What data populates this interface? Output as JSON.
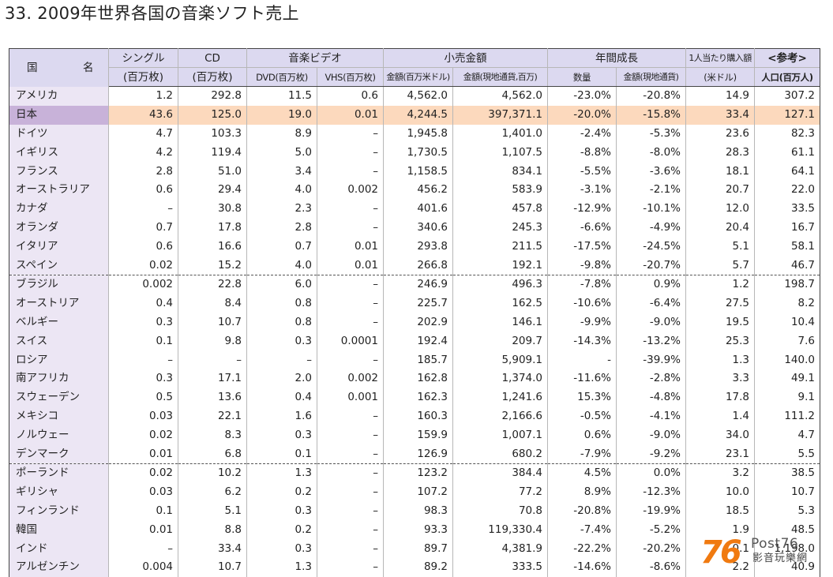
{
  "title": "33. 2009年世界各国の音楽ソフト売上",
  "header": {
    "country": "国　名",
    "single": "シングル",
    "single_unit": "(百万枚)",
    "cd": "CD",
    "cd_unit": "(百万枚)",
    "music_video": "音楽ビデオ",
    "dvd": "DVD(百万枚)",
    "vhs": "VHS(百万枚)",
    "retail": "小売金額",
    "retail_usd": "金額(百万米ドル)",
    "retail_local": "金額(現地通貨,百万)",
    "growth": "年間成長",
    "growth_qty": "数量",
    "growth_amount": "金額(現地通貨)",
    "per_capita": "1人当たり購入額",
    "per_capita_unit": "(米ドル)",
    "ref": "<参考>",
    "population": "人口(百万人)"
  },
  "rows": [
    {
      "country": "アメリカ",
      "single": "1.2",
      "cd": "292.8",
      "dvd": "11.5",
      "vhs": "0.6",
      "usd": "4,562.0",
      "local": "4,562.0",
      "qty": "-23.0%",
      "amt": "-20.8%",
      "per": "14.9",
      "pop": "307.2"
    },
    {
      "country": "日本",
      "single": "43.6",
      "cd": "125.0",
      "dvd": "19.0",
      "vhs": "0.01",
      "usd": "4,244.5",
      "local": "397,371.1",
      "qty": "-20.0%",
      "amt": "-15.8%",
      "per": "33.4",
      "pop": "127.1"
    },
    {
      "country": "ドイツ",
      "single": "4.7",
      "cd": "103.3",
      "dvd": "8.9",
      "vhs": "–",
      "usd": "1,945.8",
      "local": "1,401.0",
      "qty": "-2.4%",
      "amt": "-5.3%",
      "per": "23.6",
      "pop": "82.3"
    },
    {
      "country": "イギリス",
      "single": "4.2",
      "cd": "119.4",
      "dvd": "5.0",
      "vhs": "–",
      "usd": "1,730.5",
      "local": "1,107.5",
      "qty": "-8.8%",
      "amt": "-8.0%",
      "per": "28.3",
      "pop": "61.1"
    },
    {
      "country": "フランス",
      "single": "2.8",
      "cd": "51.0",
      "dvd": "3.4",
      "vhs": "–",
      "usd": "1,158.5",
      "local": "834.1",
      "qty": "-5.5%",
      "amt": "-3.6%",
      "per": "18.1",
      "pop": "64.1"
    },
    {
      "country": "オーストラリア",
      "single": "0.6",
      "cd": "29.4",
      "dvd": "4.0",
      "vhs": "0.002",
      "usd": "456.2",
      "local": "583.9",
      "qty": "-3.1%",
      "amt": "-2.1%",
      "per": "20.7",
      "pop": "22.0"
    },
    {
      "country": "カナダ",
      "single": "–",
      "cd": "30.8",
      "dvd": "2.3",
      "vhs": "–",
      "usd": "401.6",
      "local": "457.8",
      "qty": "-12.9%",
      "amt": "-10.1%",
      "per": "12.0",
      "pop": "33.5"
    },
    {
      "country": "オランダ",
      "single": "0.7",
      "cd": "17.8",
      "dvd": "2.8",
      "vhs": "–",
      "usd": "340.6",
      "local": "245.3",
      "qty": "-6.6%",
      "amt": "-4.9%",
      "per": "20.4",
      "pop": "16.7"
    },
    {
      "country": "イタリア",
      "single": "0.6",
      "cd": "16.6",
      "dvd": "0.7",
      "vhs": "0.01",
      "usd": "293.8",
      "local": "211.5",
      "qty": "-17.5%",
      "amt": "-24.5%",
      "per": "5.1",
      "pop": "58.1"
    },
    {
      "country": "スペイン",
      "single": "0.02",
      "cd": "15.2",
      "dvd": "4.0",
      "vhs": "0.01",
      "usd": "266.8",
      "local": "192.1",
      "qty": "-9.8%",
      "amt": "-20.7%",
      "per": "5.7",
      "pop": "46.7"
    },
    {
      "country": "ブラジル",
      "single": "0.002",
      "cd": "22.8",
      "dvd": "6.0",
      "vhs": "–",
      "usd": "246.9",
      "local": "496.3",
      "qty": "-7.8%",
      "amt": "0.9%",
      "per": "1.2",
      "pop": "198.7"
    },
    {
      "country": "オーストリア",
      "single": "0.4",
      "cd": "8.4",
      "dvd": "0.8",
      "vhs": "–",
      "usd": "225.7",
      "local": "162.5",
      "qty": "-10.6%",
      "amt": "-6.4%",
      "per": "27.5",
      "pop": "8.2"
    },
    {
      "country": "ベルギー",
      "single": "0.3",
      "cd": "10.7",
      "dvd": "0.8",
      "vhs": "–",
      "usd": "202.9",
      "local": "146.1",
      "qty": "-9.9%",
      "amt": "-9.0%",
      "per": "19.5",
      "pop": "10.4"
    },
    {
      "country": "スイス",
      "single": "0.1",
      "cd": "9.8",
      "dvd": "0.3",
      "vhs": "0.0001",
      "usd": "192.4",
      "local": "209.7",
      "qty": "-14.3%",
      "amt": "-13.2%",
      "per": "25.3",
      "pop": "7.6"
    },
    {
      "country": "ロシア",
      "single": "–",
      "cd": "–",
      "dvd": "–",
      "vhs": "–",
      "usd": "185.7",
      "local": "5,909.1",
      "qty": "-",
      "amt": "-39.9%",
      "per": "1.3",
      "pop": "140.0"
    },
    {
      "country": "南アフリカ",
      "single": "0.3",
      "cd": "17.1",
      "dvd": "2.0",
      "vhs": "0.002",
      "usd": "162.8",
      "local": "1,374.0",
      "qty": "-11.6%",
      "amt": "-2.8%",
      "per": "3.3",
      "pop": "49.1"
    },
    {
      "country": "スウェーデン",
      "single": "0.5",
      "cd": "13.6",
      "dvd": "0.4",
      "vhs": "0.001",
      "usd": "162.3",
      "local": "1,241.6",
      "qty": "15.3%",
      "amt": "-4.8%",
      "per": "17.8",
      "pop": "9.1"
    },
    {
      "country": "メキシコ",
      "single": "0.03",
      "cd": "22.1",
      "dvd": "1.6",
      "vhs": "–",
      "usd": "160.3",
      "local": "2,166.6",
      "qty": "-0.5%",
      "amt": "-4.1%",
      "per": "1.4",
      "pop": "111.2"
    },
    {
      "country": "ノルウェー",
      "single": "0.02",
      "cd": "8.3",
      "dvd": "0.3",
      "vhs": "–",
      "usd": "159.9",
      "local": "1,007.1",
      "qty": "0.6%",
      "amt": "-9.0%",
      "per": "34.0",
      "pop": "4.7"
    },
    {
      "country": "デンマーク",
      "single": "0.01",
      "cd": "6.8",
      "dvd": "0.1",
      "vhs": "–",
      "usd": "126.9",
      "local": "680.2",
      "qty": "-7.9%",
      "amt": "-9.2%",
      "per": "23.1",
      "pop": "5.5"
    },
    {
      "country": "ポーランド",
      "single": "0.02",
      "cd": "10.2",
      "dvd": "1.3",
      "vhs": "–",
      "usd": "123.2",
      "local": "384.4",
      "qty": "4.5%",
      "amt": "0.0%",
      "per": "3.2",
      "pop": "38.5"
    },
    {
      "country": "ギリシャ",
      "single": "0.03",
      "cd": "6.2",
      "dvd": "0.2",
      "vhs": "–",
      "usd": "107.2",
      "local": "77.2",
      "qty": "8.9%",
      "amt": "-12.3%",
      "per": "10.0",
      "pop": "10.7"
    },
    {
      "country": "フィンランド",
      "single": "0.1",
      "cd": "5.1",
      "dvd": "0.3",
      "vhs": "–",
      "usd": "98.3",
      "local": "70.8",
      "qty": "-20.8%",
      "amt": "-19.9%",
      "per": "18.5",
      "pop": "5.3"
    },
    {
      "country": "韓国",
      "single": "0.01",
      "cd": "8.8",
      "dvd": "0.2",
      "vhs": "–",
      "usd": "93.3",
      "local": "119,330.4",
      "qty": "-7.4%",
      "amt": "-5.2%",
      "per": "1.9",
      "pop": "48.5"
    },
    {
      "country": "インド",
      "single": "–",
      "cd": "33.4",
      "dvd": "0.3",
      "vhs": "–",
      "usd": "89.7",
      "local": "4,381.9",
      "qty": "-22.2%",
      "amt": "-20.2%",
      "per": "0.1",
      "pop": "1,198.0"
    },
    {
      "country": "アルゼンチン",
      "single": "0.004",
      "cd": "10.7",
      "dvd": "1.3",
      "vhs": "–",
      "usd": "89.2",
      "local": "333.5",
      "qty": "-14.6%",
      "amt": "-8.6%",
      "per": "2.2",
      "pop": "40.9"
    }
  ],
  "watermark": {
    "mark": "76",
    "brand": "Post76",
    "sub": "影音玩樂網"
  }
}
